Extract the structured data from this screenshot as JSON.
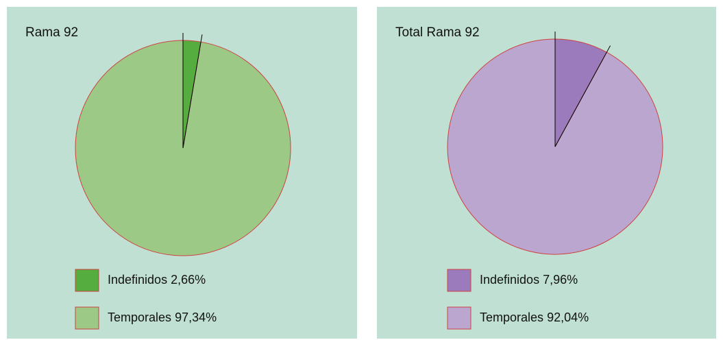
{
  "chart_data": [
    {
      "type": "pie",
      "title": "Rama 92",
      "categories": [
        "Indefinidos",
        "Temporales"
      ],
      "values": [
        2.66,
        97.34
      ],
      "value_labels": [
        "2,66%",
        "97,34%"
      ],
      "colors": [
        "#55ac3f",
        "#9cc986"
      ]
    },
    {
      "type": "pie",
      "title": "Total Rama 92",
      "categories": [
        "Indefinidos",
        "Temporales"
      ],
      "values": [
        7.96,
        92.04
      ],
      "value_labels": [
        "7,96%",
        "92,04%"
      ],
      "colors": [
        "#9b7bbb",
        "#baa6cf"
      ]
    }
  ]
}
